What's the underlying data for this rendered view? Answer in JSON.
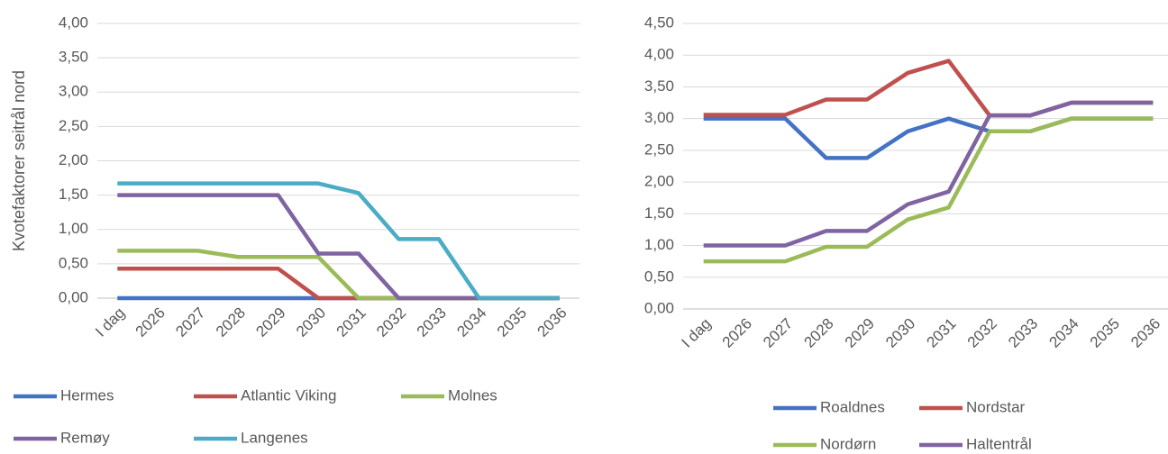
{
  "chart_data": [
    {
      "type": "line",
      "y_label": "Kvotefaktorer seitrål nord",
      "categories": [
        "I dag",
        "2026",
        "2027",
        "2028",
        "2029",
        "2030",
        "2031",
        "2032",
        "2033",
        "2034",
        "2035",
        "2036"
      ],
      "ylim": [
        0,
        4
      ],
      "yticks": [
        {
          "value": 0,
          "label": "0,00"
        },
        {
          "value": 0.5,
          "label": "0,50"
        },
        {
          "value": 1,
          "label": "1,00"
        },
        {
          "value": 1.5,
          "label": "1,50"
        },
        {
          "value": 2,
          "label": "2,00"
        },
        {
          "value": 2.5,
          "label": "2,50"
        },
        {
          "value": 3,
          "label": "3,00"
        },
        {
          "value": 3.5,
          "label": "3,50"
        },
        {
          "value": 4,
          "label": "4,00"
        }
      ],
      "grid": true,
      "legend": "bottom",
      "series": [
        {
          "name": "Hermes",
          "color": "#4472c4",
          "values": [
            0,
            0,
            0,
            0,
            0,
            0,
            0,
            0,
            0,
            0,
            0,
            0
          ]
        },
        {
          "name": "Atlantic Viking",
          "color": "#c0504d",
          "values": [
            0.43,
            0.43,
            0.43,
            0.43,
            0.43,
            0,
            0,
            0,
            0,
            0,
            0,
            0
          ]
        },
        {
          "name": "Molnes",
          "color": "#9bbb59",
          "values": [
            0.69,
            0.69,
            0.69,
            0.6,
            0.6,
            0.6,
            0,
            0,
            0,
            0,
            0,
            0
          ]
        },
        {
          "name": "Remøy",
          "color": "#8064a2",
          "values": [
            1.5,
            1.5,
            1.5,
            1.5,
            1.5,
            0.65,
            0.65,
            0,
            0,
            0,
            0,
            0
          ]
        },
        {
          "name": "Langenes",
          "color": "#4bacc6",
          "values": [
            1.67,
            1.67,
            1.67,
            1.67,
            1.67,
            1.67,
            1.53,
            0.86,
            0.86,
            0,
            0,
            0
          ]
        }
      ]
    },
    {
      "type": "line",
      "categories": [
        "I dag",
        "2026",
        "2027",
        "2028",
        "2029",
        "2030",
        "2031",
        "2032",
        "2033",
        "2034",
        "2035",
        "2036"
      ],
      "ylim": [
        0,
        4.5
      ],
      "yticks": [
        {
          "value": 0,
          "label": "0,00"
        },
        {
          "value": 0.5,
          "label": "0,50"
        },
        {
          "value": 1,
          "label": "1,00"
        },
        {
          "value": 1.5,
          "label": "1,50"
        },
        {
          "value": 2,
          "label": "2,00"
        },
        {
          "value": 2.5,
          "label": "2,50"
        },
        {
          "value": 3,
          "label": "3,00"
        },
        {
          "value": 3.5,
          "label": "3,50"
        },
        {
          "value": 4,
          "label": "4,00"
        },
        {
          "value": 4.5,
          "label": "4,50"
        }
      ],
      "grid": true,
      "legend": "bottom",
      "series": [
        {
          "name": "Roaldnes",
          "color": "#4472c4",
          "values": [
            3,
            3,
            3,
            2.38,
            2.38,
            2.8,
            3,
            2.8,
            2.8,
            3,
            3,
            3
          ]
        },
        {
          "name": "Nordstar",
          "color": "#c0504d",
          "values": [
            3.06,
            3.06,
            3.06,
            3.3,
            3.3,
            3.72,
            3.91,
            3.05,
            3.05,
            3.25,
            3.25,
            3.25
          ]
        },
        {
          "name": "Nordørn",
          "color": "#9bbb59",
          "values": [
            0.75,
            0.75,
            0.75,
            0.98,
            0.98,
            1.41,
            1.6,
            2.8,
            2.8,
            3,
            3,
            3
          ]
        },
        {
          "name": "Haltentrål",
          "color": "#8064a2",
          "values": [
            1,
            1,
            1,
            1.23,
            1.23,
            1.65,
            1.85,
            3.05,
            3.05,
            3.25,
            3.25,
            3.25
          ]
        }
      ]
    }
  ]
}
